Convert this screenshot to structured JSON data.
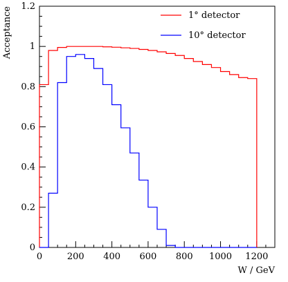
{
  "chart_data": {
    "type": "line",
    "step": true,
    "xlabel": "W / GeV",
    "ylabel": "Acceptance",
    "xlim": [
      0,
      1300
    ],
    "ylim": [
      0,
      1.2
    ],
    "x_ticks": [
      0,
      200,
      400,
      600,
      800,
      1000,
      1200
    ],
    "x_tick_labels": [
      "0",
      "200",
      "400",
      "600",
      "800",
      "1000",
      "1200"
    ],
    "y_ticks": [
      0,
      0.2,
      0.4,
      0.6,
      0.8,
      1,
      1.2
    ],
    "y_tick_labels": [
      "0",
      "0.2",
      "0.4",
      "0.6",
      "0.8",
      "1",
      "1.2"
    ],
    "grid": false,
    "legend_position": "top-right",
    "bin_edges": [
      0,
      50,
      100,
      150,
      200,
      250,
      300,
      350,
      400,
      450,
      500,
      550,
      600,
      650,
      700,
      750,
      800,
      850,
      900,
      950,
      1000,
      1050,
      1100,
      1150,
      1200
    ],
    "series": [
      {
        "name": "1° detector",
        "color": "#ff0000",
        "values": [
          0.81,
          0.98,
          0.995,
          1.0,
          1.0,
          1.0,
          1.0,
          0.998,
          0.996,
          0.993,
          0.99,
          0.985,
          0.98,
          0.973,
          0.965,
          0.955,
          0.94,
          0.925,
          0.91,
          0.895,
          0.875,
          0.86,
          0.845,
          0.84
        ]
      },
      {
        "name": "10° detector",
        "color": "#0000ff",
        "values": [
          0,
          0.27,
          0.82,
          0.95,
          0.96,
          0.94,
          0.89,
          0.81,
          0.71,
          0.595,
          0.47,
          0.335,
          0.2,
          0.09,
          0.01,
          0.0,
          0.0,
          0,
          0,
          0,
          0,
          0,
          0,
          0
        ]
      }
    ]
  }
}
